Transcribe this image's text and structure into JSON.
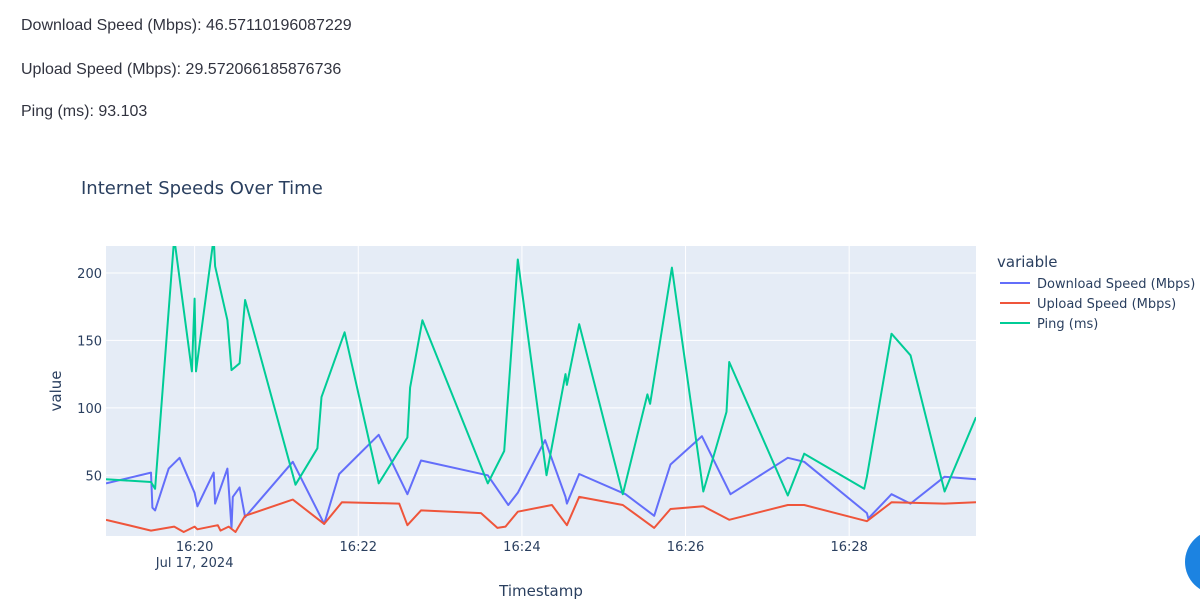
{
  "stats": {
    "download_label": "Download Speed (Mbps):",
    "download_value": "46.57110196087229",
    "upload_label": "Upload Speed (Mbps):",
    "upload_value": "29.572066185876736",
    "ping_label": "Ping (ms):",
    "ping_value": "93.103"
  },
  "chart_data": {
    "type": "line",
    "title": "Internet Speeds Over Time",
    "xlabel": "Timestamp",
    "ylabel": "value",
    "legend_title": "variable",
    "legend_position": "right",
    "grid": true,
    "xlim": [
      "2024-07-17 16:18:55",
      "2024-07-17 16:29:33"
    ],
    "ylim": [
      5,
      220
    ],
    "x_ticks": [
      {
        "x": "2024-07-17 16:20:00",
        "label": "16:20",
        "sublabel": "Jul 17, 2024"
      },
      {
        "x": "2024-07-17 16:22:00",
        "label": "16:22"
      },
      {
        "x": "2024-07-17 16:24:00",
        "label": "16:24"
      },
      {
        "x": "2024-07-17 16:26:00",
        "label": "16:26"
      },
      {
        "x": "2024-07-17 16:28:00",
        "label": "16:28"
      }
    ],
    "y_ticks": [
      50,
      100,
      150,
      200
    ],
    "series": [
      {
        "name": "Download Speed (Mbps)",
        "color": "#636efa",
        "points": [
          [
            "2024-07-17 16:18:55",
            44
          ],
          [
            "2024-07-17 16:19:28",
            52
          ],
          [
            "2024-07-17 16:19:29",
            26
          ],
          [
            "2024-07-17 16:19:31",
            24
          ],
          [
            "2024-07-17 16:19:41",
            55
          ],
          [
            "2024-07-17 16:19:49",
            63
          ],
          [
            "2024-07-17 16:20:00",
            37
          ],
          [
            "2024-07-17 16:20:02",
            27
          ],
          [
            "2024-07-17 16:20:14",
            52
          ],
          [
            "2024-07-17 16:20:15",
            29
          ],
          [
            "2024-07-17 16:20:24",
            55
          ],
          [
            "2024-07-17 16:20:27",
            11
          ],
          [
            "2024-07-17 16:20:28",
            34
          ],
          [
            "2024-07-17 16:20:33",
            41
          ],
          [
            "2024-07-17 16:20:37",
            19
          ],
          [
            "2024-07-17 16:21:12",
            60
          ],
          [
            "2024-07-17 16:21:35",
            14
          ],
          [
            "2024-07-17 16:21:46",
            51
          ],
          [
            "2024-07-17 16:22:15",
            80
          ],
          [
            "2024-07-17 16:22:36",
            36
          ],
          [
            "2024-07-17 16:22:46",
            61
          ],
          [
            "2024-07-17 16:23:35",
            50
          ],
          [
            "2024-07-17 16:23:50",
            28
          ],
          [
            "2024-07-17 16:23:57",
            37
          ],
          [
            "2024-07-17 16:24:17",
            76
          ],
          [
            "2024-07-17 16:24:32",
            34
          ],
          [
            "2024-07-17 16:24:33",
            29
          ],
          [
            "2024-07-17 16:24:42",
            51
          ],
          [
            "2024-07-17 16:25:16",
            36
          ],
          [
            "2024-07-17 16:25:37",
            20
          ],
          [
            "2024-07-17 16:25:49",
            58
          ],
          [
            "2024-07-17 16:26:12",
            79
          ],
          [
            "2024-07-17 16:26:33",
            36
          ],
          [
            "2024-07-17 16:27:15",
            63
          ],
          [
            "2024-07-17 16:27:27",
            60
          ],
          [
            "2024-07-17 16:28:13",
            22
          ],
          [
            "2024-07-17 16:28:14",
            18
          ],
          [
            "2024-07-17 16:28:31",
            36
          ],
          [
            "2024-07-17 16:28:45",
            29
          ],
          [
            "2024-07-17 16:29:10",
            49
          ],
          [
            "2024-07-17 16:29:33",
            47
          ]
        ]
      },
      {
        "name": "Upload Speed (Mbps)",
        "color": "#ef553b",
        "points": [
          [
            "2024-07-17 16:18:55",
            17
          ],
          [
            "2024-07-17 16:19:28",
            9
          ],
          [
            "2024-07-17 16:19:45",
            12
          ],
          [
            "2024-07-17 16:19:52",
            8
          ],
          [
            "2024-07-17 16:20:00",
            12
          ],
          [
            "2024-07-17 16:20:02",
            10
          ],
          [
            "2024-07-17 16:20:17",
            13
          ],
          [
            "2024-07-17 16:20:19",
            9
          ],
          [
            "2024-07-17 16:20:25",
            12
          ],
          [
            "2024-07-17 16:20:30",
            8
          ],
          [
            "2024-07-17 16:20:37",
            20
          ],
          [
            "2024-07-17 16:21:12",
            32
          ],
          [
            "2024-07-17 16:21:35",
            14
          ],
          [
            "2024-07-17 16:21:48",
            30
          ],
          [
            "2024-07-17 16:22:30",
            29
          ],
          [
            "2024-07-17 16:22:36",
            13
          ],
          [
            "2024-07-17 16:22:46",
            24
          ],
          [
            "2024-07-17 16:23:30",
            22
          ],
          [
            "2024-07-17 16:23:42",
            11
          ],
          [
            "2024-07-17 16:23:48",
            12
          ],
          [
            "2024-07-17 16:23:57",
            23
          ],
          [
            "2024-07-17 16:24:22",
            28
          ],
          [
            "2024-07-17 16:24:33",
            13
          ],
          [
            "2024-07-17 16:24:42",
            34
          ],
          [
            "2024-07-17 16:25:14",
            28
          ],
          [
            "2024-07-17 16:25:37",
            11
          ],
          [
            "2024-07-17 16:25:49",
            25
          ],
          [
            "2024-07-17 16:26:13",
            27
          ],
          [
            "2024-07-17 16:26:32",
            17
          ],
          [
            "2024-07-17 16:27:15",
            28
          ],
          [
            "2024-07-17 16:27:27",
            28
          ],
          [
            "2024-07-17 16:28:13",
            16
          ],
          [
            "2024-07-17 16:28:31",
            30
          ],
          [
            "2024-07-17 16:29:10",
            29
          ],
          [
            "2024-07-17 16:29:33",
            30
          ]
        ]
      },
      {
        "name": "Ping (ms)",
        "color": "#00cc96",
        "points": [
          [
            "2024-07-17 16:18:55",
            47
          ],
          [
            "2024-07-17 16:19:28",
            45
          ],
          [
            "2024-07-17 16:19:31",
            40
          ],
          [
            "2024-07-17 16:19:45",
            226
          ],
          [
            "2024-07-17 16:19:58",
            127
          ],
          [
            "2024-07-17 16:20:00",
            181
          ],
          [
            "2024-07-17 16:20:01",
            127
          ],
          [
            "2024-07-17 16:20:14",
            226
          ],
          [
            "2024-07-17 16:20:15",
            205
          ],
          [
            "2024-07-17 16:20:24",
            165
          ],
          [
            "2024-07-17 16:20:27",
            128
          ],
          [
            "2024-07-17 16:20:33",
            133
          ],
          [
            "2024-07-17 16:20:37",
            180
          ],
          [
            "2024-07-17 16:21:14",
            43
          ],
          [
            "2024-07-17 16:21:30",
            70
          ],
          [
            "2024-07-17 16:21:33",
            108
          ],
          [
            "2024-07-17 16:21:50",
            156
          ],
          [
            "2024-07-17 16:22:15",
            44
          ],
          [
            "2024-07-17 16:22:36",
            78
          ],
          [
            "2024-07-17 16:22:38",
            115
          ],
          [
            "2024-07-17 16:22:47",
            165
          ],
          [
            "2024-07-17 16:23:35",
            44
          ],
          [
            "2024-07-17 16:23:47",
            68
          ],
          [
            "2024-07-17 16:23:57",
            210
          ],
          [
            "2024-07-17 16:24:18",
            50
          ],
          [
            "2024-07-17 16:24:32",
            125
          ],
          [
            "2024-07-17 16:24:33",
            117
          ],
          [
            "2024-07-17 16:24:42",
            162
          ],
          [
            "2024-07-17 16:25:14",
            36
          ],
          [
            "2024-07-17 16:25:32",
            110
          ],
          [
            "2024-07-17 16:25:34",
            103
          ],
          [
            "2024-07-17 16:25:50",
            204
          ],
          [
            "2024-07-17 16:26:13",
            38
          ],
          [
            "2024-07-17 16:26:30",
            97
          ],
          [
            "2024-07-17 16:26:32",
            134
          ],
          [
            "2024-07-17 16:27:15",
            35
          ],
          [
            "2024-07-17 16:27:27",
            66
          ],
          [
            "2024-07-17 16:28:11",
            40
          ],
          [
            "2024-07-17 16:28:13",
            49
          ],
          [
            "2024-07-17 16:28:31",
            155
          ],
          [
            "2024-07-17 16:28:45",
            139
          ],
          [
            "2024-07-17 16:29:10",
            38
          ],
          [
            "2024-07-17 16:29:33",
            93
          ]
        ]
      }
    ]
  }
}
